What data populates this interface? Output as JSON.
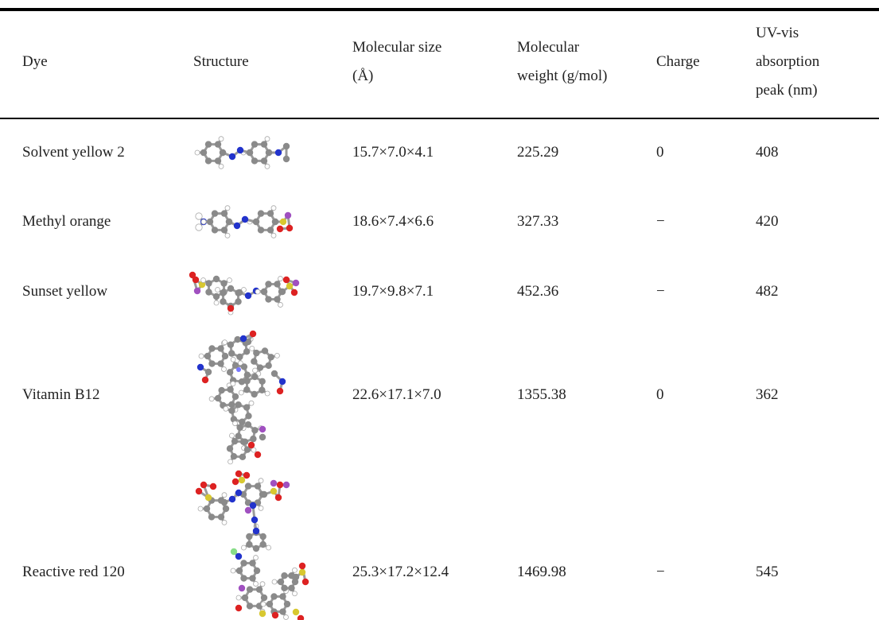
{
  "table": {
    "header": [
      [
        "Dye"
      ],
      [
        "Structure"
      ],
      [
        "Molecular size",
        "(Å)"
      ],
      [
        "Molecular",
        "weight (g/mol)"
      ],
      [
        "Charge"
      ],
      [
        "UV-vis",
        "absorption",
        "peak (nm)"
      ]
    ],
    "rows": [
      [
        "Solvent yellow 2",
        "15.7×7.0×4.1",
        "225.29",
        "0",
        "408"
      ],
      [
        "Methyl orange",
        "18.6×7.4×6.6",
        "327.33",
        "−",
        "420"
      ],
      [
        "Sunset yellow",
        "19.7×9.8×7.1",
        "452.36",
        "−",
        "482"
      ],
      [
        "Vitamin B12",
        "22.6×17.1×7.0",
        "1355.38",
        "0",
        "362"
      ],
      [
        "Reactive red 120",
        "25.3×17.2×12.4",
        "1469.98",
        "−",
        "545"
      ]
    ]
  }
}
